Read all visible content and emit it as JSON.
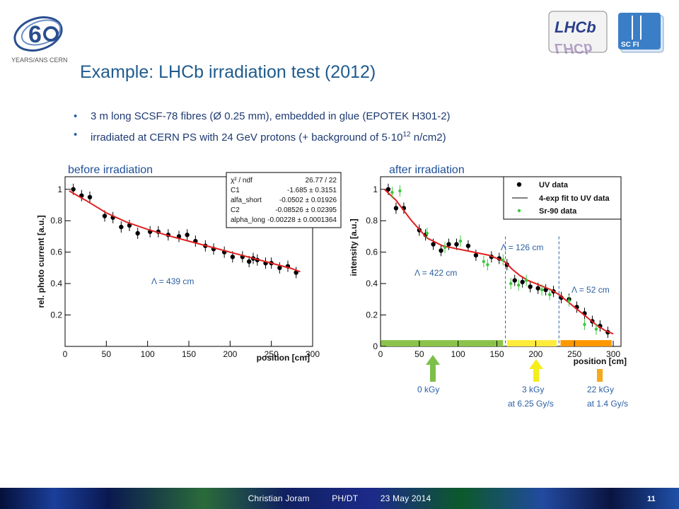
{
  "title": "Example: LHCb irradiation test (2012)",
  "bullets": {
    "b1": "3 m long SCSF-78 fibres (Ø 0.25 mm), embedded in glue (EPOTEK H301-2)",
    "b2_pre": "irradiated at CERN PS with 24 GeV protons  (+ background of 5·10",
    "b2_sup": "12",
    "b2_post": " n/cm2)"
  },
  "logos": {
    "cern_text": "YEARS/ANS CERN",
    "cern_bold": "CERN",
    "lhcb_text": "LHCb",
    "scfi_text": "SC FI"
  },
  "footer": {
    "author": "Christian Joram",
    "dept": "PH/DT",
    "date": "23 May 2014",
    "page": "11"
  },
  "chart_data": [
    {
      "type": "scatter",
      "title": "before irradiation",
      "xlabel": "position [cm]",
      "ylabel": "rel. photo current [a.u.]",
      "xlim": [
        0,
        300
      ],
      "ylim": [
        0,
        1.08
      ],
      "xticks": [
        0,
        50,
        100,
        150,
        200,
        250,
        300
      ],
      "yticks": [
        0.2,
        0.4,
        0.6,
        0.8,
        1
      ],
      "xtick_labels": [
        "0",
        "50",
        "100",
        "150",
        "200",
        "250",
        "300"
      ],
      "ytick_labels": [
        "0.2",
        "0.4",
        "0.6",
        "0.8",
        "1"
      ],
      "grid": false,
      "series": [
        {
          "name": "",
          "style": "points",
          "x": [
            10,
            20,
            30,
            48,
            58,
            68,
            78,
            88,
            103,
            113,
            125,
            138,
            148,
            158,
            170,
            180,
            193,
            203,
            215,
            223,
            228,
            233,
            243,
            250,
            260,
            270,
            280
          ],
          "y": [
            1.0,
            0.96,
            0.95,
            0.83,
            0.82,
            0.76,
            0.77,
            0.72,
            0.73,
            0.73,
            0.71,
            0.7,
            0.71,
            0.67,
            0.64,
            0.62,
            0.6,
            0.57,
            0.57,
            0.54,
            0.56,
            0.55,
            0.53,
            0.53,
            0.5,
            0.51,
            0.47
          ]
        },
        {
          "name": "",
          "style": "line",
          "x": [
            5,
            25,
            50,
            75,
            100,
            125,
            150,
            175,
            200,
            225,
            250,
            275,
            285
          ],
          "y": [
            0.99,
            0.93,
            0.85,
            0.79,
            0.745,
            0.705,
            0.67,
            0.635,
            0.6,
            0.565,
            0.53,
            0.495,
            0.475
          ]
        }
      ],
      "stats_box": {
        "rows": [
          [
            "χ² / ndf",
            "26.77 / 22"
          ],
          [
            "C1",
            "-1.685 ± 0.3151"
          ],
          [
            "alfa_short",
            "-0.0502 ± 0.01926"
          ],
          [
            "C2",
            "-0.08526 ± 0.02395"
          ],
          [
            "alpha_long",
            "-0.00228 ± 0.0001364"
          ]
        ]
      },
      "annotations": [
        {
          "text": "Λ = 439 cm"
        }
      ]
    },
    {
      "type": "scatter",
      "title": "after irradiation",
      "xlabel": "position [cm]",
      "ylabel": "intensity [a.u.]",
      "xlim": [
        0,
        310
      ],
      "ylim": [
        0,
        1.08
      ],
      "xticks": [
        0,
        50,
        100,
        150,
        200,
        250,
        300
      ],
      "yticks": [
        0,
        0.2,
        0.4,
        0.6,
        0.8,
        1
      ],
      "xtick_labels": [
        "0",
        "50",
        "100",
        "150",
        "200",
        "250",
        "300"
      ],
      "ytick_labels": [
        "0",
        "0.2",
        "0.4",
        "0.6",
        "0.8",
        "1"
      ],
      "grid": false,
      "legend": {
        "placement": "top-right",
        "entries": [
          "UV data",
          "4-exp fit to UV data",
          "Sr-90 data"
        ]
      },
      "series": [
        {
          "name": "UV data",
          "style": "points",
          "color": "#000000",
          "x": [
            10,
            20,
            30,
            50,
            58,
            68,
            78,
            88,
            98,
            113,
            123,
            143,
            153,
            163,
            173,
            183,
            193,
            203,
            213,
            223,
            233,
            243,
            253,
            263,
            273,
            283,
            293
          ],
          "y": [
            1.0,
            0.88,
            0.88,
            0.74,
            0.71,
            0.65,
            0.61,
            0.65,
            0.65,
            0.64,
            0.58,
            0.57,
            0.56,
            0.52,
            0.42,
            0.41,
            0.38,
            0.37,
            0.36,
            0.35,
            0.31,
            0.3,
            0.25,
            0.21,
            0.16,
            0.13,
            0.09
          ]
        },
        {
          "name": "4-exp fit to UV data",
          "style": "line",
          "color": "#e02020",
          "x": [
            5,
            20,
            40,
            60,
            80,
            100,
            120,
            140,
            160,
            170,
            180,
            190,
            200,
            210,
            220,
            230,
            240,
            250,
            260,
            270,
            280,
            290,
            300
          ],
          "y": [
            1.0,
            0.93,
            0.8,
            0.69,
            0.64,
            0.62,
            0.6,
            0.58,
            0.54,
            0.49,
            0.45,
            0.42,
            0.4,
            0.38,
            0.36,
            0.33,
            0.29,
            0.25,
            0.21,
            0.17,
            0.13,
            0.1,
            0.08
          ]
        },
        {
          "name": "Sr-90 data",
          "style": "points",
          "color": "#3cc83c",
          "x": [
            15,
            25,
            60,
            83,
            103,
            133,
            138,
            158,
            168,
            178,
            188,
            208,
            218,
            243,
            263,
            278
          ],
          "y": [
            0.98,
            0.99,
            0.72,
            0.63,
            0.67,
            0.54,
            0.52,
            0.55,
            0.4,
            0.39,
            0.42,
            0.36,
            0.33,
            0.29,
            0.14,
            0.11
          ]
        }
      ],
      "vlines": [
        161,
        230
      ],
      "dose_bands": [
        {
          "x0": 0,
          "x1": 158,
          "color": "#8bc34a"
        },
        {
          "x0": 163,
          "x1": 227,
          "color": "#ffeb3b"
        },
        {
          "x0": 232,
          "x1": 298,
          "color": "#ff9800"
        }
      ],
      "annotations": [
        {
          "text": "Λ = 422 cm"
        },
        {
          "text": "Λ = 126 cm"
        },
        {
          "text": "Λ = 52 cm"
        }
      ]
    }
  ],
  "dose_labels": [
    {
      "line1": "0 kGy",
      "line2": "",
      "arrow_color": "#7cc04a"
    },
    {
      "line1": "3 kGy",
      "line2": "at  6.25 Gy/s",
      "arrow_color": "#f4ee1a"
    },
    {
      "line1": "22 kGy",
      "line2": "at 1.4 Gy/s",
      "arrow_color": "#f7a91a"
    }
  ]
}
